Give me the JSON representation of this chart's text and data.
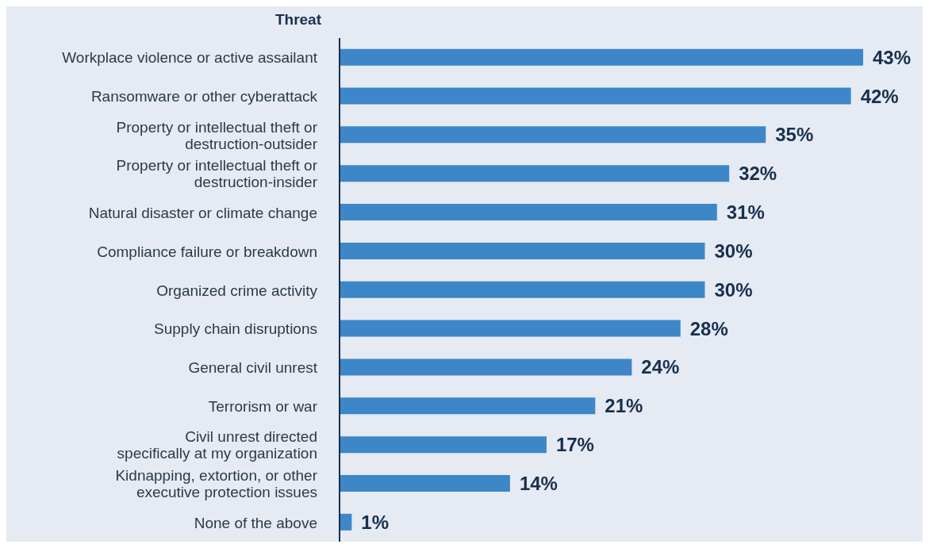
{
  "chart_data": {
    "type": "bar",
    "orientation": "horizontal",
    "ylabel": "Threat",
    "categories": [
      "Workplace violence or active assailant",
      "Ransomware or other cyberattack",
      "Property or intellectual theft or\ndestruction-outsider",
      "Property or intellectual theft or\ndestruction-insider",
      "Natural disaster or climate change",
      "Compliance failure or breakdown",
      "Organized crime activity",
      "Supply chain disruptions",
      "General civil unrest",
      "Terrorism or war",
      "Civil unrest directed\nspecifically at my organization",
      "Kidnapping, extortion, or other\nexecutive protection issues",
      "None of the above"
    ],
    "values": [
      43,
      42,
      35,
      32,
      31,
      30,
      30,
      28,
      24,
      21,
      17,
      14,
      1
    ],
    "value_labels": [
      "43%",
      "42%",
      "35%",
      "32%",
      "31%",
      "30%",
      "30%",
      "28%",
      "24%",
      "21%",
      "17%",
      "14%",
      "1%"
    ],
    "color": "#3d87c8"
  }
}
